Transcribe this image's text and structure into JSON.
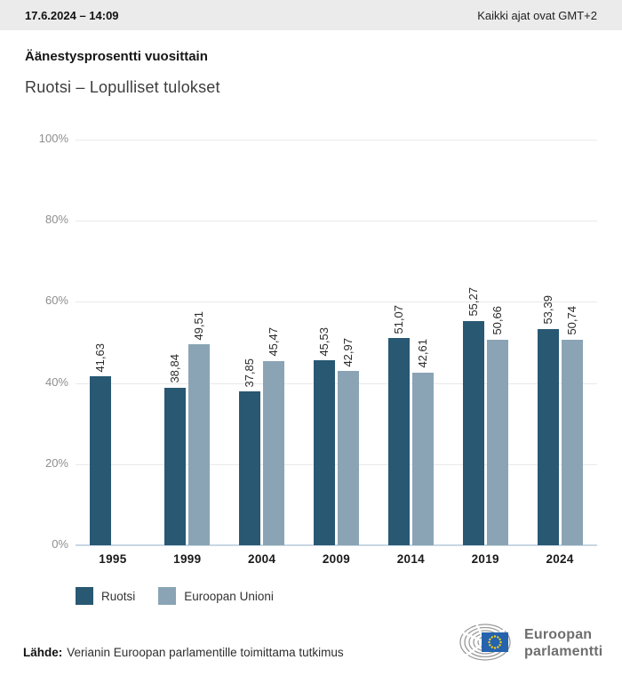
{
  "header": {
    "datetime": "17.6.2024 – 14:09",
    "timezone_note": "Kaikki ajat ovat GMT+2"
  },
  "title": "Äänestysprosentti vuosittain",
  "subtitle": "Ruotsi – Lopulliset tulokset",
  "chart_data": {
    "type": "bar",
    "title": "Äänestysprosentti vuosittain",
    "subtitle": "Ruotsi – Lopulliset tulokset",
    "categories": [
      "1995",
      "1999",
      "2004",
      "2009",
      "2014",
      "2019",
      "2024"
    ],
    "series": [
      {
        "name": "Ruotsi",
        "color": "#285872",
        "values": [
          41.63,
          38.84,
          37.85,
          45.53,
          51.07,
          55.27,
          53.39
        ]
      },
      {
        "name": "Euroopan Unioni",
        "color": "#8aa4b5",
        "values": [
          null,
          49.51,
          45.47,
          42.97,
          42.61,
          50.66,
          50.74
        ]
      }
    ],
    "ylim": [
      0,
      100
    ],
    "yticks": [
      0,
      20,
      40,
      60,
      80,
      100
    ],
    "ytick_suffix": "%",
    "value_label_decimal_separator": ",",
    "grid": true,
    "legend_position": "bottom"
  },
  "legend": {
    "items": [
      {
        "label": "Ruotsi",
        "color": "#285872"
      },
      {
        "label": "Euroopan Unioni",
        "color": "#8aa4b5"
      }
    ]
  },
  "footer": {
    "source_label": "Lähde:",
    "source_text": "Verianin Euroopan parlamentille toimittama tutkimus",
    "logo": {
      "line1": "Euroopan",
      "line2": "parlamentti",
      "flag_color": "#2563af",
      "star_color": "#f7d117",
      "mark_color": "#9b9b9b"
    }
  }
}
